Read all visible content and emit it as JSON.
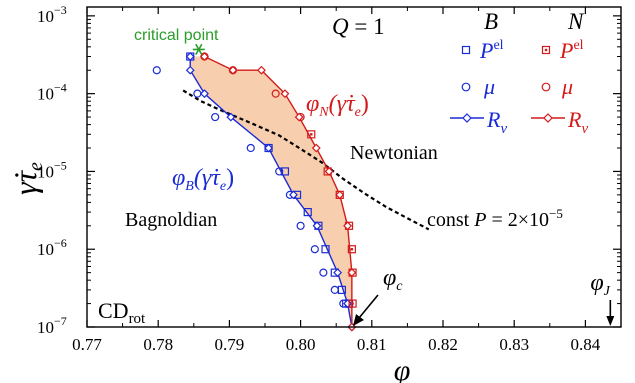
{
  "chart_data": {
    "type": "scatter",
    "xlabel": "φ",
    "ylabel": "γ̇τe",
    "xlim": [
      0.77,
      0.845
    ],
    "ylim": [
      1e-07,
      0.0013
    ],
    "y_scale": "log",
    "grid": false,
    "x_ticks": [
      0.77,
      0.78,
      0.79,
      0.8,
      0.81,
      0.82,
      0.83,
      0.84
    ],
    "x_tick_labels": [
      "0.77",
      "0.78",
      "0.79",
      "0.80",
      "0.81",
      "0.82",
      "0.83",
      "0.84"
    ],
    "y_ticks": [
      1e-07,
      1e-06,
      1e-05,
      0.0001,
      0.001
    ],
    "y_tick_labels": [
      {
        "base": "10",
        "exp": "−7"
      },
      {
        "base": "10",
        "exp": "−6"
      },
      {
        "base": "10",
        "exp": "−5"
      },
      {
        "base": "10",
        "exp": "−4"
      },
      {
        "base": "10",
        "exp": "−3"
      }
    ],
    "colors": {
      "B": "#1b2bd6",
      "N": "#d41a1a",
      "shade": "#f8cfae",
      "critical": "#2a9d2a",
      "dashed": "#000000"
    },
    "series": [
      {
        "group": "B",
        "marker": "square",
        "x": [
          0.7845,
          0.7955,
          0.7978,
          0.7995,
          0.801,
          0.8025,
          0.8035,
          0.8048,
          0.8058,
          0.8064,
          0.8068
        ],
        "y": [
          0.0003,
          2e-05,
          1e-05,
          5e-06,
          3e-06,
          2e-06,
          1e-06,
          5e-07,
          3e-07,
          2e-07,
          2e-07
        ]
      },
      {
        "group": "B",
        "marker": "circle",
        "x": [
          0.7798,
          0.7855,
          0.788,
          0.793,
          0.797,
          0.7985,
          0.8,
          0.802,
          0.8032,
          0.8048,
          0.806
        ],
        "y": [
          0.0002,
          0.0001,
          5e-05,
          2e-05,
          1e-05,
          5e-06,
          2e-06,
          1e-06,
          5e-07,
          3e-07,
          2e-07
        ]
      },
      {
        "group": "B",
        "marker": "diamond",
        "line": true,
        "x": [
          0.7845,
          0.7845,
          0.7865,
          0.7902,
          0.7955,
          0.799,
          0.8023,
          0.8052,
          0.8066,
          0.8072
        ],
        "y": [
          0.0003,
          0.0002,
          0.0001,
          5e-05,
          2e-05,
          5e-06,
          2e-06,
          5e-07,
          2e-07,
          1e-07
        ]
      },
      {
        "group": "N",
        "marker": "square",
        "x": [
          0.8015,
          0.8038,
          0.8055,
          0.8068,
          0.8072,
          0.8073,
          0.8073
        ],
        "y": [
          3e-05,
          1e-05,
          5e-06,
          2e-06,
          1e-06,
          5e-07,
          2e-07
        ]
      },
      {
        "group": "N",
        "marker": "circle",
        "x": [
          0.7865,
          0.7905,
          0.7965,
          0.8
        ],
        "y": [
          0.0003,
          0.0002,
          0.0001,
          5e-05
        ]
      },
      {
        "group": "N",
        "marker": "diamond",
        "line": true,
        "x": [
          0.7865,
          0.7905,
          0.7945,
          0.7978,
          0.7998,
          0.8022,
          0.804,
          0.8055,
          0.8066,
          0.8072,
          0.8072
        ],
        "y": [
          0.0003,
          0.0002,
          0.0002,
          0.0001,
          5e-05,
          2e-05,
          1e-05,
          5e-06,
          2e-06,
          5e-07,
          1e-07
        ]
      }
    ],
    "dashed_curve": {
      "x": [
        0.7835,
        0.786,
        0.789,
        0.793,
        0.797,
        0.8,
        0.803,
        0.806,
        0.809,
        0.812,
        0.815,
        0.818
      ],
      "y": [
        0.00011,
        8e-05,
        6e-05,
        4.2e-05,
        2.9e-05,
        1.95e-05,
        1.3e-05,
        8e-06,
        5.2e-06,
        3.5e-06,
        2.5e-06,
        1.8e-06
      ]
    },
    "critical_point": {
      "x": 0.7857,
      "y": 0.00037,
      "label": "critical point"
    },
    "phi_c": 0.8072,
    "phi_J": 0.8435,
    "texts": {
      "Q": "Q = 1",
      "legend_header_B": "B",
      "legend_header_N": "N",
      "legend_P": "P",
      "legend_P_sup": "el",
      "legend_mu": "μ",
      "legend_R": "R",
      "legend_R_sub": "v",
      "phiN_label": "φN(γ̇τe)",
      "phiB_label": "φB(γ̇τe)",
      "newtonian": "Newtonian",
      "bagnoldian": "Bagnoldian",
      "const_label": "const P = 2×10",
      "const_exp": "−5",
      "phi_c_label": "φc",
      "phi_J_label": "φJ",
      "cd_label": "CD",
      "cd_sub": "rot"
    }
  }
}
